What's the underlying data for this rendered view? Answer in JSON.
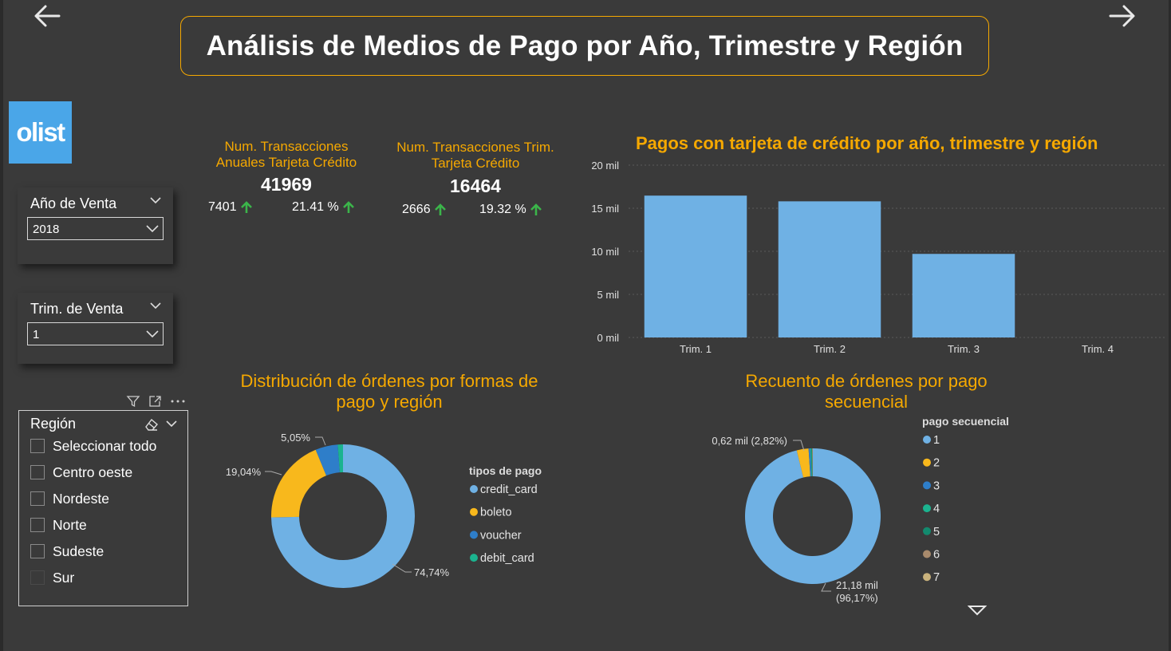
{
  "header": {
    "title": "Análisis de Medios de Pago por Año, Trimestre y Región",
    "logo_text": "olist",
    "nav_back_icon": "arrow-left-icon",
    "nav_forward_icon": "arrow-right-icon"
  },
  "filters": {
    "year": {
      "label": "Año de Venta",
      "value": "2018"
    },
    "quarter": {
      "label": "Trim. de Venta",
      "value": "1"
    },
    "region": {
      "label": "Región",
      "items": [
        "Seleccionar todo",
        "Centro oeste",
        "Nordeste",
        "Norte",
        "Sudeste",
        "Sur"
      ]
    }
  },
  "kpis": [
    {
      "title_line1": "Num. Transacciones",
      "title_line2": "Anuales Tarjeta Crédito",
      "value": "41969",
      "delta": "7401",
      "pct": "21.41 %"
    },
    {
      "title_line1": "Num. Transacciones Trim.",
      "title_line2": "Tarjeta Crédito",
      "value": "16464",
      "delta": "2666",
      "pct": "19.32 %"
    }
  ],
  "colors": {
    "accent": "#f5a800",
    "bar": "#6fb1e4",
    "up_arrow": "#3bb54a",
    "background": "#3a3a3a"
  },
  "chart_data": [
    {
      "type": "bar",
      "title": "Pagos con tarjeta de crédito por año, trimestre y región",
      "categories": [
        "Trim. 1",
        "Trim. 2",
        "Trim. 3",
        "Trim. 4"
      ],
      "values": [
        16464,
        15800,
        9700,
        0
      ],
      "ylim": [
        0,
        20000
      ],
      "yticks": [
        0,
        5000,
        10000,
        15000,
        20000
      ],
      "ytick_labels": [
        "0 mil",
        "5 mil",
        "10 mil",
        "15 mil",
        "20 mil"
      ],
      "grid": true
    },
    {
      "type": "pie",
      "title_line1": "Distribución de órdenes por formas de",
      "title_line2": "pago y región",
      "legend_title": "tipos de pago",
      "slices": [
        {
          "name": "credit_card",
          "pct": 74.74,
          "label": "74,74%",
          "color": "#6fb1e4"
        },
        {
          "name": "boleto",
          "pct": 19.04,
          "label": "19,04%",
          "color": "#f8b81c"
        },
        {
          "name": "voucher",
          "pct": 5.05,
          "label": "5,05%",
          "color": "#2e7ec9"
        },
        {
          "name": "debit_card",
          "pct": 1.17,
          "label": "",
          "color": "#1bb38f"
        }
      ]
    },
    {
      "type": "pie",
      "title_line1": "Recuento de órdenes por pago",
      "title_line2": "secuencial",
      "legend_title": "pago secuencial",
      "slices": [
        {
          "name": "1",
          "pct": 96.17,
          "label_line1": "21,18 mil",
          "label_line2": "(96,17%)",
          "color": "#6fb1e4"
        },
        {
          "name": "2",
          "pct": 2.82,
          "label_line1": "0,62 mil (2,82%)",
          "label_line2": "",
          "color": "#f8b81c"
        },
        {
          "name": "3",
          "pct": 0.45,
          "label_line1": "",
          "label_line2": "",
          "color": "#2e7ec9"
        },
        {
          "name": "4",
          "pct": 0.25,
          "label_line1": "",
          "label_line2": "",
          "color": "#1bb38f"
        },
        {
          "name": "5",
          "pct": 0.15,
          "label_line1": "",
          "label_line2": "",
          "color": "#138a6e"
        },
        {
          "name": "6",
          "pct": 0.09,
          "label_line1": "",
          "label_line2": "",
          "color": "#a88a6c"
        },
        {
          "name": "7",
          "pct": 0.07,
          "label_line1": "",
          "label_line2": "",
          "color": "#c9b27c"
        }
      ]
    }
  ]
}
